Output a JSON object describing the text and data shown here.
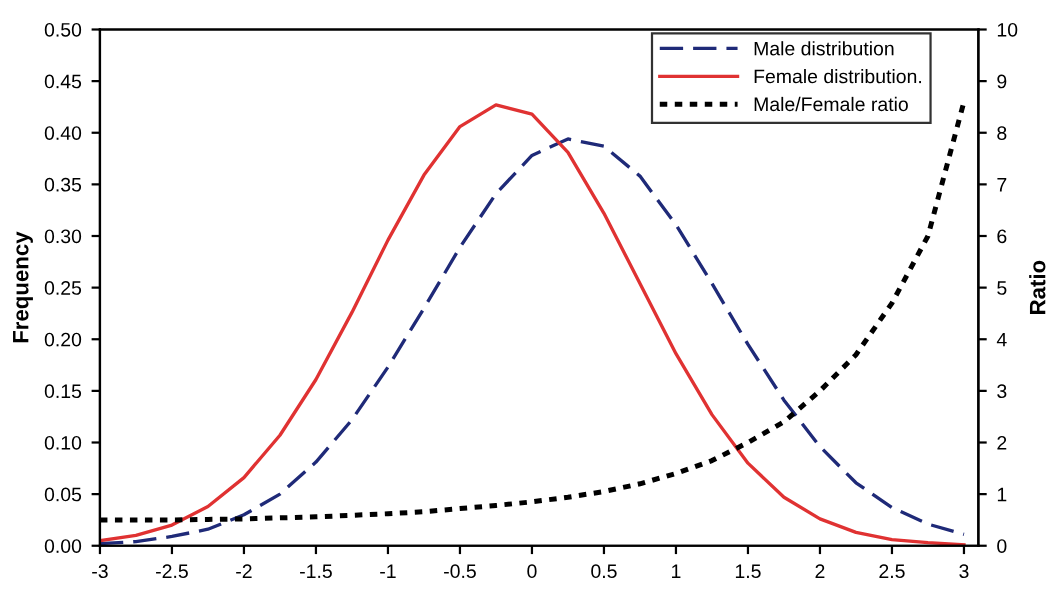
{
  "chart_data": {
    "type": "line",
    "xlabel": null,
    "ylabel": "Frequency",
    "y2label": "Ratio",
    "xlim": [
      -3,
      3.1
    ],
    "xticks": [
      -3,
      -2.5,
      -2,
      -1.5,
      -1,
      -0.5,
      0,
      0.5,
      1,
      1.5,
      2,
      2.5,
      3
    ],
    "ylim": [
      0,
      0.5
    ],
    "yticks": [
      {
        "value": 0,
        "label": "0.00"
      },
      {
        "value": 0.05,
        "label": "0.05"
      },
      {
        "value": 0.1,
        "label": "0.10"
      },
      {
        "value": 0.15,
        "label": "0.15"
      },
      {
        "value": 0.2,
        "label": "0.20"
      },
      {
        "value": 0.25,
        "label": "0.25"
      },
      {
        "value": 0.3,
        "label": "0.30"
      },
      {
        "value": 0.35,
        "label": "0.35"
      },
      {
        "value": 0.4,
        "label": "0.40"
      },
      {
        "value": 0.45,
        "label": "0.45"
      },
      {
        "value": 0.5,
        "label": "0.50"
      }
    ],
    "y2lim": [
      0,
      10
    ],
    "y2ticks": [
      0,
      1,
      2,
      3,
      4,
      5,
      6,
      7,
      8,
      9,
      10
    ],
    "grid": false,
    "legend": "top right",
    "marker": "none",
    "x": [
      -3,
      -2.75,
      -2.5,
      -2.25,
      -2,
      -1.75,
      -1.5,
      -1.25,
      -1,
      -0.75,
      -0.5,
      -0.25,
      0,
      0.25,
      0.5,
      0.75,
      1,
      1.25,
      1.5,
      1.75,
      2,
      2.25,
      2.5,
      2.75,
      3
    ],
    "series": [
      {
        "name": "Male distribution",
        "color": "#1f2a78",
        "line_style": "dashed",
        "values": [
          0.002,
          0.004,
          0.009,
          0.016,
          0.03,
          0.05,
          0.081,
          0.122,
          0.173,
          0.23,
          0.289,
          0.341,
          0.378,
          0.394,
          0.387,
          0.358,
          0.311,
          0.254,
          0.195,
          0.141,
          0.096,
          0.061,
          0.037,
          0.021,
          0.011
        ]
      },
      {
        "name": "Female distribution.",
        "color": "#e03232",
        "line_style": "solid",
        "values": [
          0.005,
          0.01,
          0.02,
          0.038,
          0.066,
          0.107,
          0.161,
          0.226,
          0.296,
          0.359,
          0.406,
          0.427,
          0.418,
          0.381,
          0.322,
          0.254,
          0.186,
          0.127,
          0.08,
          0.047,
          0.026,
          0.013,
          0.006,
          0.003,
          0.001
        ]
      },
      {
        "name": "Male/Female ratio",
        "color": "#000000",
        "line_style": "dotted",
        "axis": "y2",
        "values": [
          0.5,
          0.5,
          0.5,
          0.51,
          0.52,
          0.54,
          0.56,
          0.59,
          0.62,
          0.66,
          0.72,
          0.78,
          0.85,
          0.94,
          1.05,
          1.2,
          1.4,
          1.65,
          2.0,
          2.4,
          3.0,
          3.7,
          4.7,
          6.0,
          8.6
        ]
      }
    ]
  }
}
